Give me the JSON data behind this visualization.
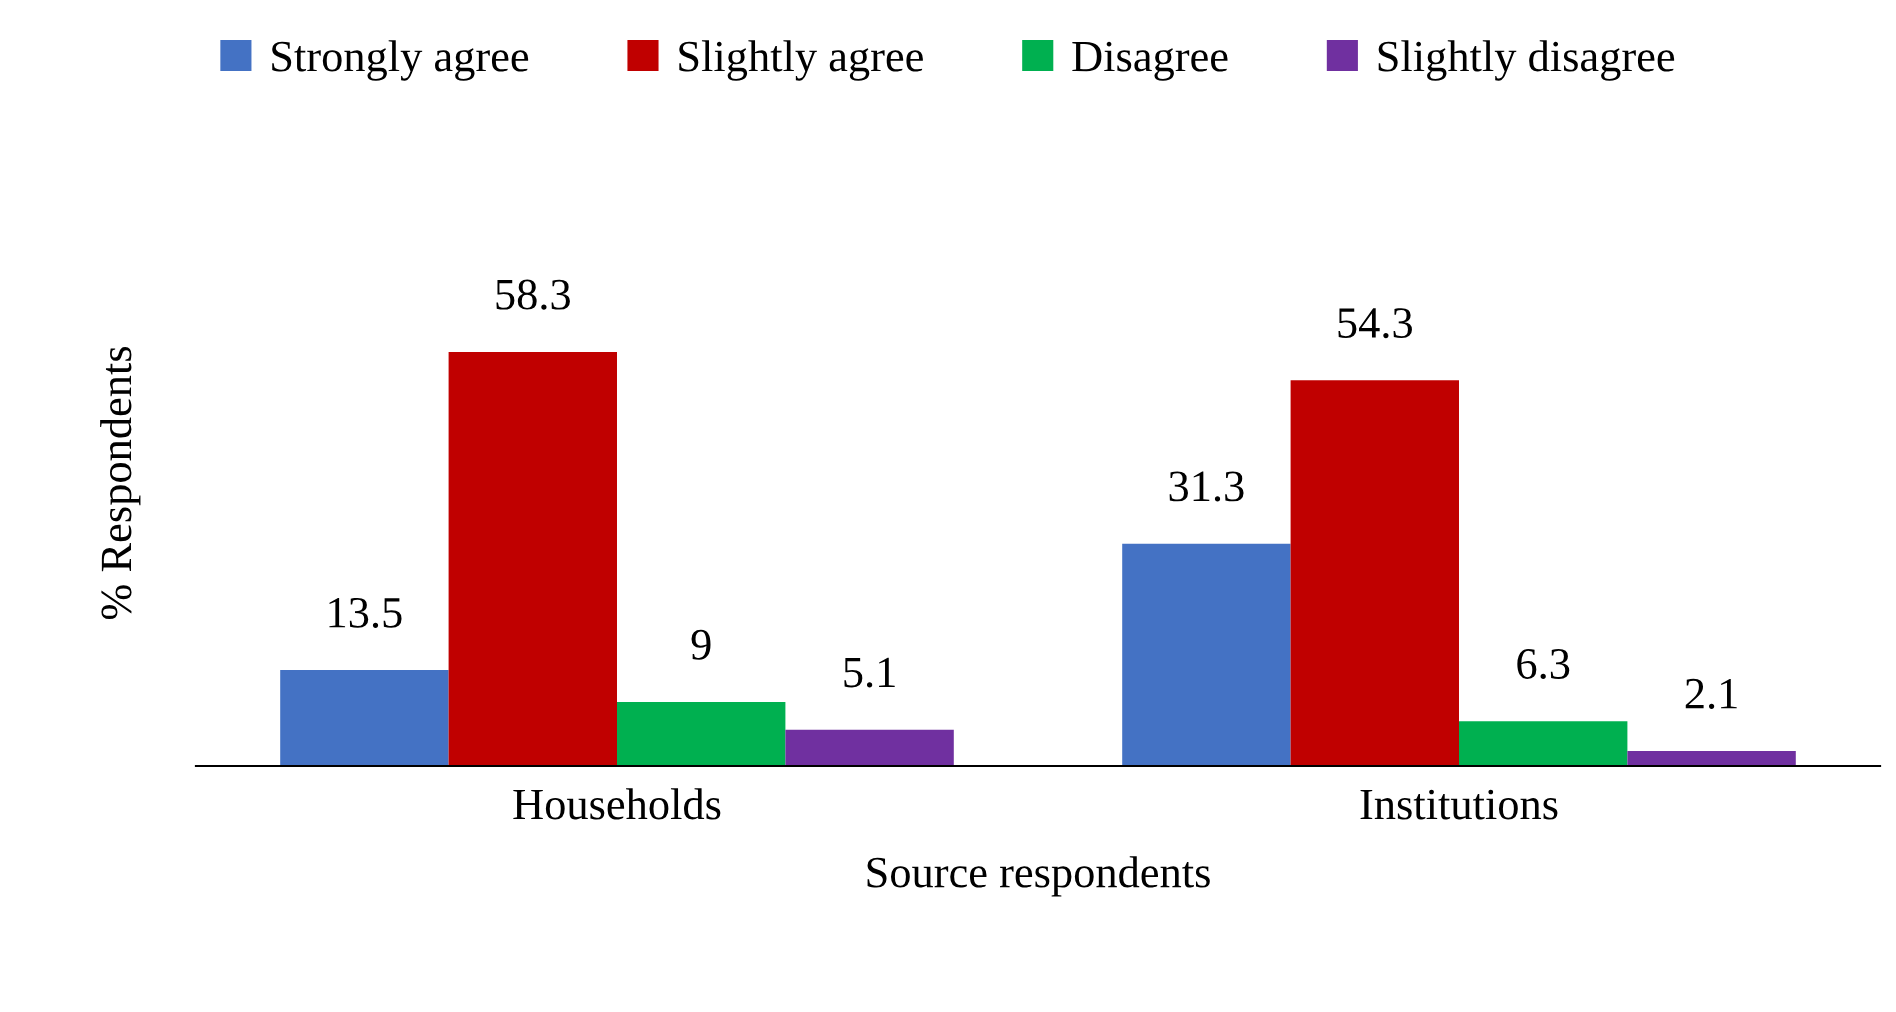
{
  "chart_data": {
    "type": "bar",
    "xlabel": "Source respondents",
    "ylabel": "% Respondents",
    "categories": [
      "Households",
      "Institutions"
    ],
    "series": [
      {
        "name": "Strongly agree",
        "color": "#4472c4",
        "values": [
          13.5,
          31.3
        ]
      },
      {
        "name": "Slightly agree",
        "color": "#c00000",
        "values": [
          58.3,
          54.3
        ]
      },
      {
        "name": "Disagree",
        "color": "#00b050",
        "values": [
          9,
          6.3
        ]
      },
      {
        "name": "Slightly disagree",
        "color": "#7030a0",
        "values": [
          5.1,
          2.1
        ]
      }
    ],
    "data_labels": true,
    "legend": "top",
    "grid": false,
    "tick_labels": "x"
  }
}
